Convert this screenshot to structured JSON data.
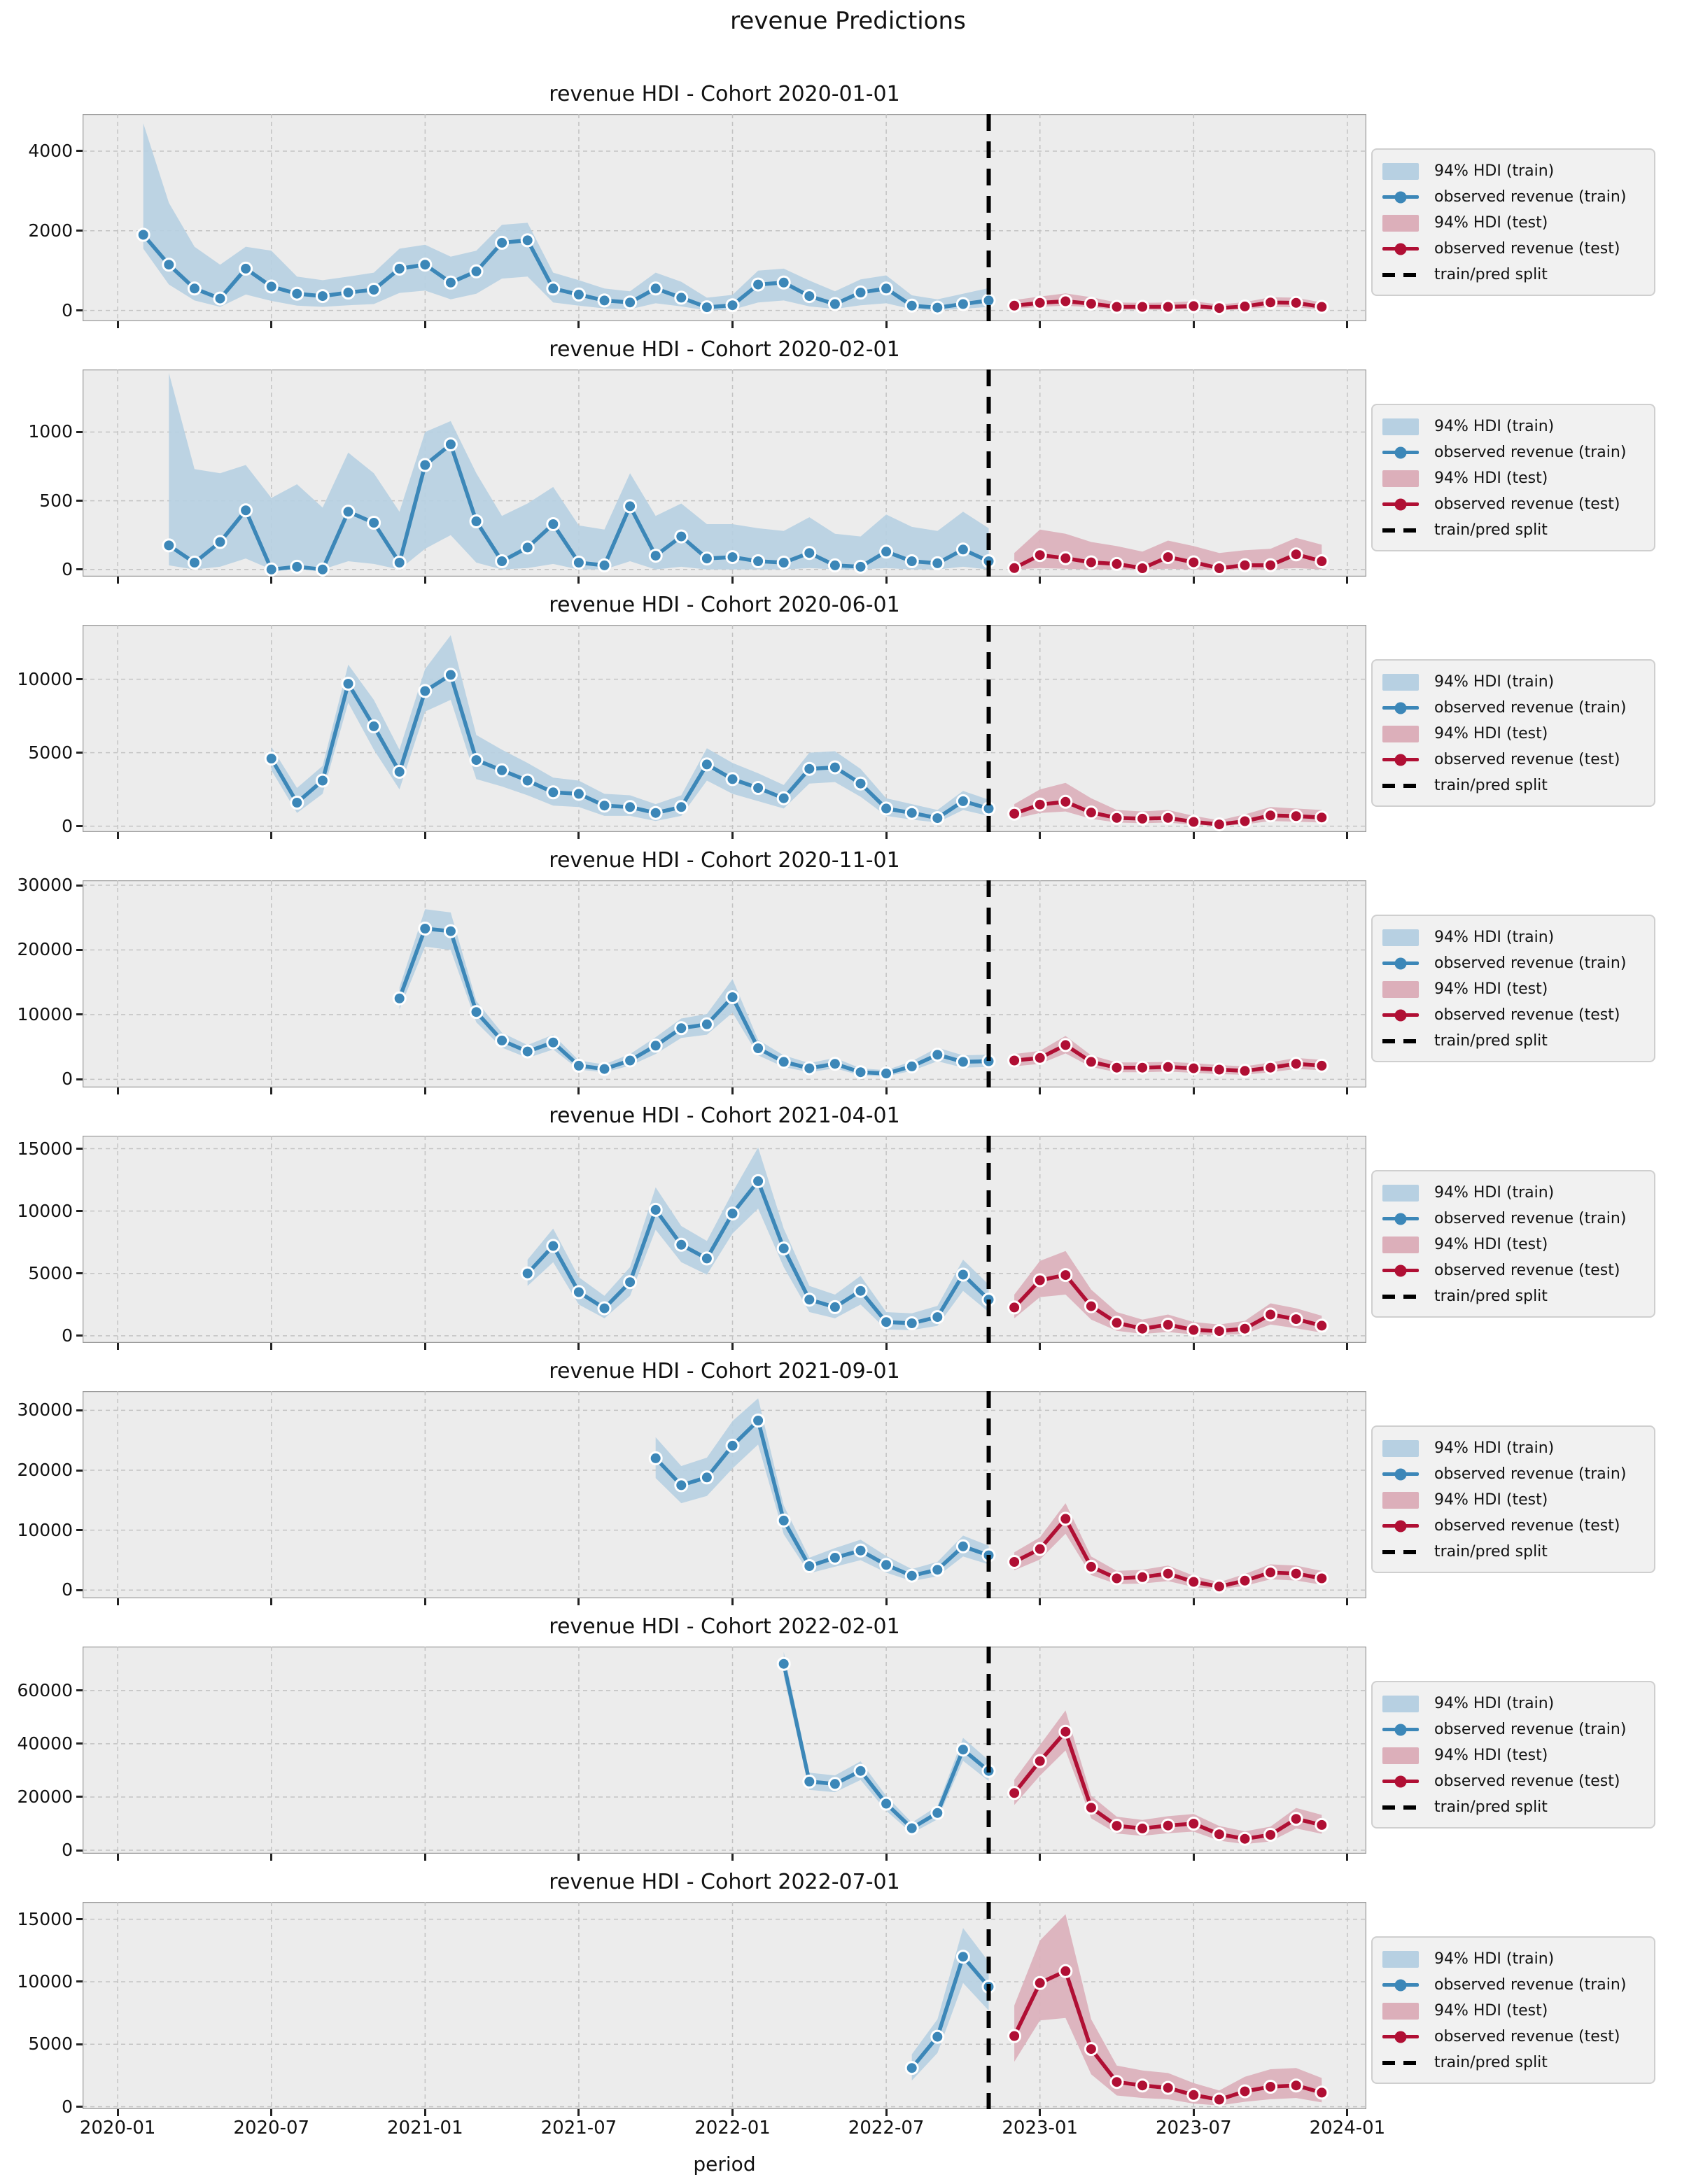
{
  "figure": {
    "suptitle": "revenue Predictions",
    "xlabel": "period"
  },
  "colors": {
    "train_line": "#3c87b8",
    "train_band": "#b7d0e2",
    "test_line": "#b00f34",
    "test_band": "#dcafba",
    "split_line": "#000000",
    "axes_background": "#ececec",
    "grid": "#c3c3c3",
    "frame": "#9c9c9c",
    "legend_background": "#f1f1f1"
  },
  "legend_items": [
    {
      "label": "94% HDI (train)",
      "swatch": "patch",
      "role": "train"
    },
    {
      "label": "observed revenue (train)",
      "swatch": "line-dot",
      "role": "train"
    },
    {
      "label": "94% HDI (test)",
      "swatch": "patch",
      "role": "test"
    },
    {
      "label": "observed revenue (test)",
      "swatch": "line-dot",
      "role": "test"
    },
    {
      "label": "train/pred split",
      "swatch": "dashed-line",
      "role": "split"
    }
  ],
  "x_axis": {
    "label": "period",
    "tick_labels": [
      "2020-01",
      "2020-07",
      "2021-01",
      "2021-07",
      "2022-01",
      "2022-07",
      "2023-01",
      "2023-07",
      "2024-01"
    ],
    "tick_month_indices": [
      0,
      6,
      12,
      18,
      24,
      30,
      36,
      42,
      48
    ],
    "domain_month_indices": [
      -1.37,
      48.74
    ],
    "split_month_index": 34,
    "split_period": "2022-11"
  },
  "chart_data": [
    {
      "type": "line",
      "title": "revenue HDI - Cohort 2020-01-01",
      "cohort": "2020-01-01",
      "y_ticks": [
        0,
        2000,
        4000
      ],
      "ylim": [
        -270,
        4930
      ],
      "train": {
        "start_period": "2020-02",
        "start_month_index": 1,
        "observed": [
          1900,
          1150,
          550,
          300,
          1050,
          600,
          420,
          360,
          450,
          520,
          1050,
          1150,
          700,
          980,
          1700,
          1760,
          550,
          400,
          250,
          200,
          550,
          320,
          80,
          130,
          650,
          700,
          360,
          160,
          450,
          550,
          120,
          70,
          160,
          250
        ],
        "hdi_upper": [
          4700,
          2700,
          1600,
          1150,
          1600,
          1500,
          850,
          760,
          850,
          950,
          1550,
          1650,
          1350,
          1500,
          2150,
          2200,
          950,
          760,
          550,
          480,
          950,
          720,
          320,
          390,
          1000,
          1050,
          750,
          480,
          780,
          880,
          380,
          280,
          420,
          560
        ],
        "hdi_lower": [
          1550,
          650,
          250,
          90,
          400,
          240,
          120,
          90,
          130,
          160,
          440,
          500,
          280,
          420,
          800,
          850,
          200,
          120,
          50,
          30,
          180,
          100,
          0,
          20,
          200,
          250,
          100,
          40,
          130,
          180,
          30,
          10,
          40,
          90
        ]
      },
      "test": {
        "start_period": "2022-12",
        "start_month_index": 35,
        "observed": [
          120,
          190,
          230,
          170,
          90,
          90,
          90,
          110,
          60,
          100,
          200,
          190,
          90
        ],
        "hdi_upper": [
          260,
          350,
          430,
          330,
          200,
          190,
          200,
          230,
          150,
          210,
          330,
          320,
          200
        ],
        "hdi_lower": [
          40,
          90,
          120,
          80,
          20,
          20,
          20,
          40,
          10,
          30,
          90,
          80,
          20
        ]
      }
    },
    {
      "type": "line",
      "title": "revenue HDI - Cohort 2020-02-01",
      "cohort": "2020-02-01",
      "y_ticks": [
        0,
        500,
        1000
      ],
      "ylim": [
        -52,
        1455
      ],
      "train": {
        "start_period": "2020-03",
        "start_month_index": 2,
        "observed": [
          175,
          50,
          200,
          430,
          0,
          20,
          0,
          420,
          340,
          50,
          760,
          910,
          350,
          60,
          160,
          330,
          50,
          30,
          460,
          100,
          240,
          80,
          90,
          60,
          50,
          120,
          30,
          20,
          130,
          60,
          45,
          145,
          60
        ],
        "hdi_upper": [
          1430,
          730,
          700,
          760,
          520,
          620,
          450,
          850,
          700,
          420,
          1000,
          1080,
          700,
          390,
          480,
          600,
          320,
          290,
          700,
          390,
          480,
          330,
          330,
          300,
          280,
          380,
          260,
          240,
          400,
          310,
          280,
          420,
          300
        ],
        "hdi_lower": [
          30,
          0,
          20,
          80,
          0,
          0,
          0,
          60,
          40,
          0,
          150,
          250,
          50,
          0,
          10,
          40,
          0,
          0,
          60,
          0,
          20,
          0,
          0,
          0,
          0,
          10,
          0,
          0,
          10,
          0,
          0,
          20,
          0
        ]
      },
      "test": {
        "start_period": "2022-12",
        "start_month_index": 35,
        "observed": [
          10,
          105,
          82,
          52,
          40,
          9,
          90,
          52,
          9,
          31,
          31,
          110,
          60
        ],
        "hdi_upper": [
          120,
          290,
          260,
          200,
          170,
          130,
          210,
          170,
          120,
          140,
          150,
          230,
          180
        ],
        "hdi_lower": [
          0,
          10,
          5,
          0,
          0,
          0,
          5,
          0,
          0,
          0,
          0,
          10,
          0
        ]
      }
    },
    {
      "type": "line",
      "title": "revenue HDI - Cohort 2020-06-01",
      "cohort": "2020-06-01",
      "y_ticks": [
        0,
        5000,
        10000
      ],
      "ylim": [
        -400,
        13700
      ],
      "train": {
        "start_period": "2020-07",
        "start_month_index": 6,
        "observed": [
          4600,
          1600,
          3100,
          9700,
          6800,
          3700,
          9200,
          10300,
          4500,
          3800,
          3100,
          2300,
          2200,
          1400,
          1300,
          900,
          1300,
          4200,
          3200,
          2600,
          1900,
          3900,
          4000,
          2900,
          1200,
          900,
          550,
          1700,
          1200
        ],
        "hdi_upper": [
          5400,
          2600,
          4100,
          11000,
          8600,
          5200,
          10700,
          13000,
          6200,
          5200,
          4300,
          3300,
          3100,
          2200,
          2100,
          1500,
          2100,
          5300,
          4300,
          3600,
          2800,
          5000,
          5100,
          3900,
          1900,
          1500,
          1100,
          2400,
          1800
        ],
        "hdi_lower": [
          3800,
          900,
          2200,
          8400,
          5200,
          2500,
          7800,
          8600,
          3200,
          2700,
          2100,
          1400,
          1300,
          700,
          700,
          350,
          700,
          3100,
          2200,
          1700,
          1200,
          2900,
          3000,
          2000,
          700,
          450,
          250,
          1100,
          700
        ]
      },
      "test": {
        "start_period": "2022-12",
        "start_month_index": 35,
        "observed": [
          850,
          1470,
          1660,
          930,
          560,
          510,
          560,
          290,
          120,
          340,
          730,
          680,
          590
        ],
        "hdi_upper": [
          1500,
          2500,
          2950,
          1900,
          1100,
          1000,
          1100,
          700,
          400,
          800,
          1300,
          1200,
          1100
        ],
        "hdi_lower": [
          500,
          900,
          1000,
          500,
          250,
          200,
          250,
          80,
          20,
          120,
          350,
          300,
          250
        ]
      }
    },
    {
      "type": "line",
      "title": "revenue HDI - Cohort 2020-11-01",
      "cohort": "2020-11-01",
      "y_ticks": [
        0,
        10000,
        20000,
        30000
      ],
      "ylim": [
        -1260,
        30760
      ],
      "train": {
        "start_period": "2020-12",
        "start_month_index": 11,
        "observed": [
          12500,
          23300,
          22900,
          10400,
          6000,
          4300,
          5700,
          2100,
          1600,
          2900,
          5200,
          7900,
          8500,
          12700,
          4800,
          2700,
          1700,
          2400,
          1100,
          900,
          2000,
          3800,
          2700,
          2800
        ],
        "hdi_upper": [
          14200,
          26300,
          25800,
          12100,
          7200,
          5300,
          6900,
          2900,
          2300,
          3900,
          6500,
          9400,
          10100,
          15500,
          6100,
          3700,
          2500,
          3300,
          1700,
          1400,
          2800,
          4900,
          3700,
          3800
        ],
        "hdi_lower": [
          10800,
          20500,
          20000,
          8800,
          4900,
          3300,
          4600,
          1500,
          1100,
          2100,
          3900,
          6400,
          6900,
          10300,
          3700,
          1900,
          1100,
          1700,
          600,
          450,
          1300,
          2800,
          1800,
          1900
        ]
      },
      "test": {
        "start_period": "2022-12",
        "start_month_index": 35,
        "observed": [
          2900,
          3300,
          5300,
          2700,
          1800,
          1800,
          1900,
          1700,
          1500,
          1300,
          1800,
          2400,
          2100
        ],
        "hdi_upper": [
          3900,
          4400,
          6700,
          3700,
          2600,
          2600,
          2700,
          2500,
          2200,
          2000,
          2600,
          3300,
          3000
        ],
        "hdi_lower": [
          2000,
          2400,
          4000,
          1900,
          1100,
          1100,
          1200,
          1000,
          800,
          700,
          1100,
          1600,
          1400
        ]
      }
    },
    {
      "type": "line",
      "title": "revenue HDI - Cohort 2021-04-01",
      "cohort": "2021-04-01",
      "y_ticks": [
        0,
        5000,
        10000,
        15000
      ],
      "ylim": [
        -570,
        16040
      ],
      "train": {
        "start_period": "2021-05",
        "start_month_index": 16,
        "observed": [
          5000,
          7200,
          3500,
          2200,
          4300,
          10100,
          7300,
          6200,
          9800,
          12400,
          7000,
          2900,
          2300,
          3600,
          1100,
          1000,
          1500,
          4900,
          2900
        ],
        "hdi_upper": [
          6100,
          8600,
          4700,
          3200,
          5500,
          11900,
          8800,
          7600,
          11500,
          15100,
          8600,
          4000,
          3300,
          4800,
          1900,
          1800,
          2400,
          6100,
          4100
        ],
        "hdi_lower": [
          4000,
          5900,
          2500,
          1400,
          3200,
          8500,
          5900,
          4900,
          8200,
          10200,
          5500,
          1900,
          1400,
          2500,
          500,
          450,
          800,
          3600,
          1900
        ]
      },
      "test": {
        "start_period": "2022-12",
        "start_month_index": 35,
        "observed": [
          2270,
          4450,
          4870,
          2370,
          1040,
          570,
          890,
          470,
          380,
          570,
          1700,
          1330,
          810
        ],
        "hdi_upper": [
          3300,
          6000,
          6800,
          3700,
          1900,
          1300,
          1700,
          1100,
          900,
          1200,
          2600,
          2200,
          1600
        ],
        "hdi_lower": [
          1400,
          3100,
          3300,
          1300,
          400,
          150,
          300,
          100,
          60,
          150,
          900,
          600,
          250
        ]
      }
    },
    {
      "type": "line",
      "title": "revenue HDI - Cohort 2021-09-01",
      "cohort": "2021-09-01",
      "y_ticks": [
        0,
        10000,
        20000,
        30000
      ],
      "ylim": [
        -1370,
        33200
      ],
      "train": {
        "start_period": "2021-10",
        "start_month_index": 21,
        "observed": [
          22000,
          17500,
          18800,
          24100,
          28300,
          11600,
          4000,
          5400,
          6600,
          4200,
          2400,
          3400,
          7300,
          5800
        ],
        "hdi_upper": [
          25500,
          20700,
          22100,
          28200,
          32000,
          14100,
          5400,
          7000,
          8400,
          5700,
          3500,
          4700,
          9100,
          7400
        ],
        "hdi_lower": [
          18700,
          14500,
          15700,
          20300,
          24300,
          9300,
          2800,
          3900,
          5000,
          2900,
          1500,
          2300,
          5600,
          4300
        ]
      },
      "test": {
        "start_period": "2022-12",
        "start_month_index": 35,
        "observed": [
          4700,
          6850,
          11900,
          3900,
          1960,
          2160,
          2750,
          1370,
          590,
          1570,
          2940,
          2750,
          1960
        ],
        "hdi_upper": [
          6300,
          8800,
          14500,
          5600,
          3200,
          3400,
          4100,
          2400,
          1300,
          2700,
          4300,
          4100,
          3200
        ],
        "hdi_lower": [
          3300,
          5100,
          9400,
          2500,
          1000,
          1100,
          1500,
          500,
          150,
          700,
          1800,
          1600,
          900
        ]
      }
    },
    {
      "type": "line",
      "title": "revenue HDI - Cohort 2022-02-01",
      "cohort": "2022-02-01",
      "y_ticks": [
        0,
        20000,
        40000,
        60000
      ],
      "ylim": [
        -1300,
        76500
      ],
      "train": {
        "start_period": "2022-03",
        "start_month_index": 26,
        "observed": [
          70000,
          25800,
          24900,
          29800,
          17500,
          8300,
          14000,
          37800,
          29800
        ],
        "hdi_upper": [
          74500,
          29100,
          28100,
          33400,
          20400,
          10400,
          16600,
          42200,
          33800
        ],
        "hdi_lower": [
          65500,
          22700,
          21800,
          26400,
          14800,
          6400,
          11600,
          33600,
          26000
        ]
      },
      "test": {
        "start_period": "2022-12",
        "start_month_index": 35,
        "observed": [
          21500,
          33500,
          44500,
          16000,
          9200,
          8200,
          9300,
          10000,
          6000,
          4300,
          5800,
          11800,
          9500
        ],
        "hdi_upper": [
          26500,
          39500,
          52500,
          20500,
          12600,
          11400,
          12800,
          13600,
          9100,
          7100,
          8900,
          15900,
          13300
        ],
        "hdi_lower": [
          17000,
          28000,
          37500,
          12000,
          6300,
          5400,
          6400,
          7000,
          3600,
          2300,
          3300,
          8200,
          6200
        ]
      }
    },
    {
      "type": "line",
      "title": "revenue HDI - Cohort 2022-07-01",
      "cohort": "2022-07-01",
      "y_ticks": [
        0,
        5000,
        10000,
        15000
      ],
      "ylim": [
        -190,
        16380
      ],
      "train": {
        "start_period": "2022-08",
        "start_month_index": 31,
        "observed": [
          3100,
          5600,
          12000,
          9600
        ],
        "hdi_upper": [
          4200,
          7000,
          14300,
          11600
        ],
        "hdi_lower": [
          2100,
          4300,
          9900,
          7700
        ]
      },
      "test": {
        "start_period": "2022-12",
        "start_month_index": 35,
        "observed": [
          5660,
          9900,
          10850,
          4620,
          1980,
          1700,
          1510,
          940,
          570,
          1230,
          1600,
          1700,
          1130
        ],
        "hdi_upper": [
          8100,
          13300,
          15400,
          7000,
          3300,
          2900,
          2700,
          1900,
          1300,
          2400,
          3000,
          3100,
          2300
        ],
        "hdi_lower": [
          3600,
          6900,
          7100,
          2600,
          900,
          700,
          600,
          250,
          100,
          400,
          600,
          700,
          350
        ]
      }
    }
  ]
}
